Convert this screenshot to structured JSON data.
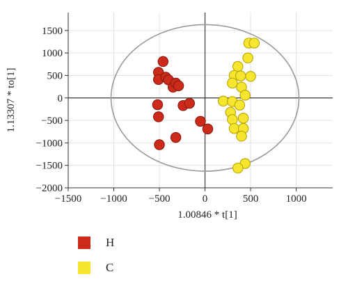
{
  "chart_data": {
    "type": "scatter",
    "xlabel": "1.00846 * t[1]",
    "ylabel": "1.13307 * to[1]",
    "xlim": [
      -1500,
      1400
    ],
    "ylim": [
      -2000,
      1900
    ],
    "xticks": [
      -1500,
      -1000,
      -500,
      0,
      500,
      1000
    ],
    "yticks": [
      -2000,
      -1500,
      -1000,
      -500,
      0,
      500,
      1000,
      1500
    ],
    "xtick_labels": [
      "−1500",
      "−1000",
      "−500",
      "0",
      "500",
      "1000"
    ],
    "ytick_labels": [
      "−2000",
      "−1500",
      "−1000",
      "−500",
      "0",
      "500",
      "1000",
      "1500"
    ],
    "grid": true,
    "confidence_ellipse": {
      "cx": 0,
      "cy": 0,
      "rx": 1030,
      "ry": 1630
    },
    "series": [
      {
        "name": "H",
        "color": "#cc2a1a",
        "points": [
          [
            -460,
            810
          ],
          [
            -510,
            570
          ],
          [
            -510,
            410
          ],
          [
            -430,
            460
          ],
          [
            -400,
            400
          ],
          [
            -350,
            240
          ],
          [
            -320,
            330
          ],
          [
            -290,
            270
          ],
          [
            -240,
            -170
          ],
          [
            -170,
            -120
          ],
          [
            -520,
            -150
          ],
          [
            -510,
            -420
          ],
          [
            -320,
            -880
          ],
          [
            -500,
            -1040
          ],
          [
            -50,
            -520
          ],
          [
            30,
            -690
          ]
        ]
      },
      {
        "name": "C",
        "color": "#f7e630",
        "points": [
          [
            480,
            1220
          ],
          [
            540,
            1220
          ],
          [
            470,
            890
          ],
          [
            360,
            700
          ],
          [
            320,
            500
          ],
          [
            390,
            490
          ],
          [
            500,
            480
          ],
          [
            300,
            330
          ],
          [
            400,
            240
          ],
          [
            440,
            60
          ],
          [
            200,
            -70
          ],
          [
            300,
            -80
          ],
          [
            380,
            -160
          ],
          [
            280,
            -320
          ],
          [
            420,
            -450
          ],
          [
            300,
            -480
          ],
          [
            320,
            -680
          ],
          [
            420,
            -680
          ],
          [
            400,
            -850
          ],
          [
            440,
            -1460
          ],
          [
            360,
            -1560
          ]
        ]
      }
    ]
  }
}
